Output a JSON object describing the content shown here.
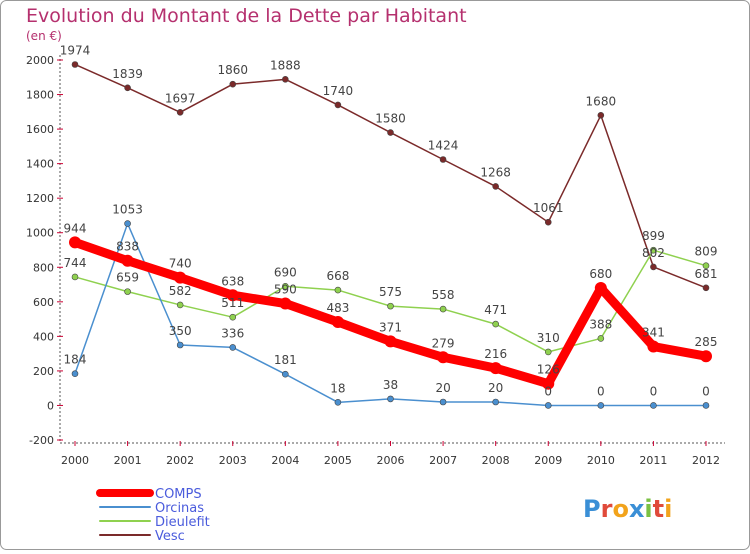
{
  "chart_data": {
    "type": "line",
    "title": "Evolution du Montant de la Dette par Habitant",
    "subtitle": "(en €)",
    "x": [
      "2000",
      "2001",
      "2002",
      "2003",
      "2004",
      "2005",
      "2006",
      "2007",
      "2008",
      "2009",
      "2010",
      "2011",
      "2012"
    ],
    "ylim": [
      -200,
      2000
    ],
    "yticks": [
      -200,
      0,
      200,
      400,
      600,
      800,
      1000,
      1200,
      1400,
      1600,
      1800,
      2000
    ],
    "grid": false,
    "legend_position": "bottom-left",
    "series": [
      {
        "name": "Vesc",
        "color": "#7b2a2a",
        "values": [
          1974,
          1839,
          1697,
          1860,
          1888,
          1740,
          1580,
          1424,
          1268,
          1061,
          1680,
          802,
          681
        ]
      },
      {
        "name": "Dieulefit",
        "color": "#8fd14f",
        "values": [
          744,
          659,
          582,
          511,
          690,
          668,
          575,
          558,
          471,
          310,
          388,
          899,
          809
        ]
      },
      {
        "name": "Orcinas",
        "color": "#4a8fcf",
        "values": [
          184,
          1053,
          350,
          336,
          181,
          18,
          38,
          20,
          20,
          0,
          0,
          0,
          0
        ]
      },
      {
        "name": "COMPS",
        "color": "#ff0000",
        "values": [
          944,
          838,
          740,
          638,
          590,
          483,
          371,
          279,
          216,
          126,
          680,
          341,
          285
        ]
      }
    ]
  },
  "logo": {
    "text": "Proxiti"
  },
  "colors": {
    "title": "#b5306e",
    "axis": "#555555",
    "frame": "#999999"
  }
}
